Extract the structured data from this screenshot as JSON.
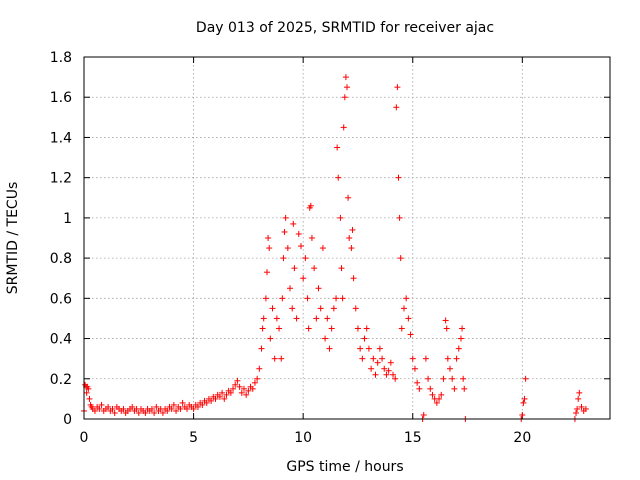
{
  "chart_data": {
    "type": "scatter",
    "title": "Day 013 of 2025, SRMTID for receiver ajac",
    "xlabel": "GPS time / hours",
    "ylabel": "SRMTID / TECUs",
    "xlim": [
      0,
      24
    ],
    "ylim": [
      0,
      1.8
    ],
    "xticks": [
      0,
      5,
      10,
      15,
      20
    ],
    "xtick_labels": [
      "0",
      "5",
      "10",
      "15",
      "20"
    ],
    "yticks": [
      0,
      0.2,
      0.4,
      0.6,
      0.8,
      1.0,
      1.2,
      1.4,
      1.6,
      1.8
    ],
    "ytick_labels": [
      "0",
      "0.2",
      "0.4",
      "0.6",
      "0.8",
      "1",
      "1.2",
      "1.4",
      "1.6",
      "1.8"
    ],
    "grid": true,
    "marker": "+",
    "color": "#ff0000",
    "series": [
      {
        "name": "SRMTID",
        "points": [
          [
            0.0,
            0.04
          ],
          [
            0.05,
            0.17
          ],
          [
            0.1,
            0.16
          ],
          [
            0.12,
            0.13
          ],
          [
            0.15,
            0.16
          ],
          [
            0.2,
            0.15
          ],
          [
            0.25,
            0.1
          ],
          [
            0.3,
            0.07
          ],
          [
            0.35,
            0.06
          ],
          [
            0.4,
            0.05
          ],
          [
            0.5,
            0.04
          ],
          [
            0.6,
            0.06
          ],
          [
            0.7,
            0.05
          ],
          [
            0.8,
            0.07
          ],
          [
            0.9,
            0.04
          ],
          [
            1.0,
            0.05
          ],
          [
            1.1,
            0.06
          ],
          [
            1.2,
            0.04
          ],
          [
            1.3,
            0.05
          ],
          [
            1.4,
            0.03
          ],
          [
            1.5,
            0.06
          ],
          [
            1.6,
            0.05
          ],
          [
            1.7,
            0.04
          ],
          [
            1.8,
            0.05
          ],
          [
            1.9,
            0.03
          ],
          [
            2.0,
            0.04
          ],
          [
            2.1,
            0.05
          ],
          [
            2.2,
            0.06
          ],
          [
            2.3,
            0.04
          ],
          [
            2.4,
            0.05
          ],
          [
            2.5,
            0.03
          ],
          [
            2.6,
            0.05
          ],
          [
            2.7,
            0.04
          ],
          [
            2.8,
            0.03
          ],
          [
            2.9,
            0.05
          ],
          [
            3.0,
            0.04
          ],
          [
            3.1,
            0.05
          ],
          [
            3.2,
            0.03
          ],
          [
            3.3,
            0.06
          ],
          [
            3.4,
            0.04
          ],
          [
            3.5,
            0.05
          ],
          [
            3.6,
            0.03
          ],
          [
            3.7,
            0.05
          ],
          [
            3.8,
            0.04
          ],
          [
            3.9,
            0.06
          ],
          [
            4.0,
            0.05
          ],
          [
            4.1,
            0.07
          ],
          [
            4.2,
            0.04
          ],
          [
            4.3,
            0.06
          ],
          [
            4.4,
            0.05
          ],
          [
            4.5,
            0.08
          ],
          [
            4.6,
            0.06
          ],
          [
            4.7,
            0.05
          ],
          [
            4.8,
            0.07
          ],
          [
            4.9,
            0.06
          ],
          [
            5.0,
            0.05
          ],
          [
            5.1,
            0.07
          ],
          [
            5.2,
            0.06
          ],
          [
            5.3,
            0.08
          ],
          [
            5.4,
            0.07
          ],
          [
            5.5,
            0.09
          ],
          [
            5.6,
            0.08
          ],
          [
            5.7,
            0.1
          ],
          [
            5.8,
            0.09
          ],
          [
            5.9,
            0.11
          ],
          [
            6.0,
            0.1
          ],
          [
            6.1,
            0.12
          ],
          [
            6.2,
            0.11
          ],
          [
            6.3,
            0.13
          ],
          [
            6.4,
            0.1
          ],
          [
            6.5,
            0.12
          ],
          [
            6.6,
            0.14
          ],
          [
            6.7,
            0.13
          ],
          [
            6.8,
            0.15
          ],
          [
            6.9,
            0.17
          ],
          [
            7.0,
            0.19
          ],
          [
            7.1,
            0.16
          ],
          [
            7.2,
            0.13
          ],
          [
            7.3,
            0.15
          ],
          [
            7.4,
            0.12
          ],
          [
            7.5,
            0.14
          ],
          [
            7.6,
            0.16
          ],
          [
            7.7,
            0.15
          ],
          [
            7.8,
            0.18
          ],
          [
            7.9,
            0.2
          ],
          [
            8.0,
            0.25
          ],
          [
            8.1,
            0.35
          ],
          [
            8.15,
            0.45
          ],
          [
            8.2,
            0.5
          ],
          [
            8.3,
            0.6
          ],
          [
            8.35,
            0.73
          ],
          [
            8.4,
            0.9
          ],
          [
            8.45,
            0.85
          ],
          [
            8.5,
            0.4
          ],
          [
            8.6,
            0.55
          ],
          [
            8.7,
            0.3
          ],
          [
            8.8,
            0.5
          ],
          [
            8.9,
            0.45
          ],
          [
            9.0,
            0.3
          ],
          [
            9.05,
            0.6
          ],
          [
            9.1,
            0.8
          ],
          [
            9.15,
            0.93
          ],
          [
            9.2,
            1.0
          ],
          [
            9.3,
            0.85
          ],
          [
            9.4,
            0.65
          ],
          [
            9.5,
            0.55
          ],
          [
            9.55,
            0.97
          ],
          [
            9.6,
            0.75
          ],
          [
            9.7,
            0.5
          ],
          [
            9.8,
            0.92
          ],
          [
            9.9,
            0.86
          ],
          [
            10.0,
            0.7
          ],
          [
            10.1,
            0.8
          ],
          [
            10.2,
            0.6
          ],
          [
            10.25,
            0.45
          ],
          [
            10.3,
            1.05
          ],
          [
            10.35,
            1.06
          ],
          [
            10.4,
            0.9
          ],
          [
            10.5,
            0.75
          ],
          [
            10.6,
            0.5
          ],
          [
            10.7,
            0.65
          ],
          [
            10.8,
            0.55
          ],
          [
            10.9,
            0.85
          ],
          [
            11.0,
            0.4
          ],
          [
            11.1,
            0.5
          ],
          [
            11.2,
            0.35
          ],
          [
            11.3,
            0.45
          ],
          [
            11.4,
            0.55
          ],
          [
            11.5,
            0.6
          ],
          [
            11.55,
            1.35
          ],
          [
            11.6,
            1.2
          ],
          [
            11.7,
            1.0
          ],
          [
            11.75,
            0.75
          ],
          [
            11.8,
            0.6
          ],
          [
            11.85,
            1.45
          ],
          [
            11.9,
            1.6
          ],
          [
            11.95,
            1.7
          ],
          [
            12.0,
            1.65
          ],
          [
            12.05,
            1.1
          ],
          [
            12.1,
            0.9
          ],
          [
            12.2,
            0.85
          ],
          [
            12.25,
            0.94
          ],
          [
            12.3,
            0.7
          ],
          [
            12.4,
            0.55
          ],
          [
            12.5,
            0.45
          ],
          [
            12.6,
            0.35
          ],
          [
            12.7,
            0.3
          ],
          [
            12.8,
            0.4
          ],
          [
            12.9,
            0.45
          ],
          [
            13.0,
            0.35
          ],
          [
            13.1,
            0.25
          ],
          [
            13.2,
            0.3
          ],
          [
            13.3,
            0.22
          ],
          [
            13.4,
            0.28
          ],
          [
            13.5,
            0.35
          ],
          [
            13.6,
            0.3
          ],
          [
            13.7,
            0.25
          ],
          [
            13.8,
            0.22
          ],
          [
            13.9,
            0.24
          ],
          [
            14.0,
            0.28
          ],
          [
            14.1,
            0.22
          ],
          [
            14.2,
            0.2
          ],
          [
            14.25,
            1.55
          ],
          [
            14.3,
            1.65
          ],
          [
            14.35,
            1.2
          ],
          [
            14.4,
            1.0
          ],
          [
            14.45,
            0.8
          ],
          [
            14.5,
            0.45
          ],
          [
            14.6,
            0.55
          ],
          [
            14.7,
            0.6
          ],
          [
            14.8,
            0.5
          ],
          [
            14.9,
            0.42
          ],
          [
            15.0,
            0.3
          ],
          [
            15.1,
            0.25
          ],
          [
            15.2,
            0.18
          ],
          [
            15.3,
            0.15
          ],
          [
            15.45,
            0.0
          ],
          [
            15.5,
            0.02
          ],
          [
            15.6,
            0.3
          ],
          [
            15.7,
            0.2
          ],
          [
            15.8,
            0.15
          ],
          [
            15.9,
            0.12
          ],
          [
            16.0,
            0.1
          ],
          [
            16.1,
            0.08
          ],
          [
            16.2,
            0.1
          ],
          [
            16.3,
            0.12
          ],
          [
            16.4,
            0.2
          ],
          [
            16.5,
            0.49
          ],
          [
            16.55,
            0.45
          ],
          [
            16.6,
            0.3
          ],
          [
            16.7,
            0.25
          ],
          [
            16.8,
            0.2
          ],
          [
            16.9,
            0.15
          ],
          [
            17.0,
            0.3
          ],
          [
            17.1,
            0.35
          ],
          [
            17.2,
            0.4
          ],
          [
            17.25,
            0.45
          ],
          [
            17.3,
            0.2
          ],
          [
            17.35,
            0.15
          ],
          [
            17.4,
            0.0
          ],
          [
            19.95,
            0.0
          ],
          [
            20.0,
            0.02
          ],
          [
            20.05,
            0.08
          ],
          [
            20.1,
            0.1
          ],
          [
            20.15,
            0.2
          ],
          [
            22.4,
            0.0
          ],
          [
            22.45,
            0.03
          ],
          [
            22.5,
            0.05
          ],
          [
            22.55,
            0.1
          ],
          [
            22.6,
            0.13
          ],
          [
            22.7,
            0.06
          ],
          [
            22.8,
            0.04
          ],
          [
            22.9,
            0.05
          ]
        ]
      }
    ]
  }
}
